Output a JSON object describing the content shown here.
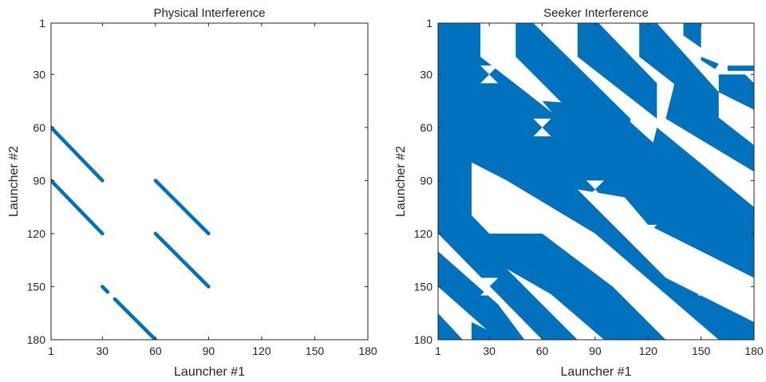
{
  "chart_data": [
    {
      "type": "heatmap",
      "title": "Physical Interference",
      "xlabel": "Launcher #1",
      "ylabel": "Launcher #2",
      "xlim": [
        1,
        180
      ],
      "ylim": [
        1,
        180
      ],
      "y_reversed": true,
      "xticks": [
        "1",
        "30",
        "60",
        "90",
        "120",
        "150",
        "180"
      ],
      "yticks": [
        "1",
        "30",
        "60",
        "90",
        "120",
        "150",
        "180"
      ],
      "color": "#0072BD",
      "bands": [
        {
          "x": [
            1,
            30
          ],
          "y": [
            60,
            90
          ]
        },
        {
          "x": [
            1,
            30
          ],
          "y": [
            90,
            120
          ]
        },
        {
          "x": [
            60,
            90
          ],
          "y": [
            90,
            120
          ]
        },
        {
          "x": [
            60,
            90
          ],
          "y": [
            120,
            150
          ]
        },
        {
          "x": [
            30,
            33
          ],
          "y": [
            150,
            153
          ]
        },
        {
          "x": [
            37,
            60
          ],
          "y": [
            157,
            180
          ]
        }
      ]
    },
    {
      "type": "heatmap",
      "title": "Seeker Interference",
      "xlabel": "Launcher #1",
      "ylabel": "Launcher #2",
      "xlim": [
        1,
        180
      ],
      "ylim": [
        1,
        180
      ],
      "y_reversed": true,
      "xticks": [
        "1",
        "30",
        "60",
        "90",
        "120",
        "150",
        "180"
      ],
      "yticks": [
        "1",
        "30",
        "60",
        "90",
        "120",
        "150",
        "180"
      ],
      "color": "#0072BD",
      "polygons": [
        [
          [
            1,
            1
          ],
          [
            1,
            120
          ],
          [
            60,
            180
          ],
          [
            80,
            180
          ],
          [
            20,
            120
          ],
          [
            20,
            60
          ],
          [
            40,
            70
          ],
          [
            60,
            90
          ],
          [
            80,
            95
          ],
          [
            110,
            100
          ],
          [
            105,
            70
          ],
          [
            70,
            55
          ],
          [
            25,
            20
          ],
          [
            25,
            1
          ]
        ],
        [
          [
            45,
            1
          ],
          [
            55,
            1
          ],
          [
            110,
            55
          ],
          [
            108,
            80
          ],
          [
            80,
            55
          ],
          [
            45,
            20
          ]
        ],
        [
          [
            80,
            1
          ],
          [
            92,
            1
          ],
          [
            125,
            35
          ],
          [
            125,
            55
          ],
          [
            80,
            20
          ]
        ],
        [
          [
            115,
            1
          ],
          [
            125,
            1
          ],
          [
            160,
            40
          ],
          [
            160,
            55
          ],
          [
            115,
            20
          ]
        ],
        [
          [
            140,
            1
          ],
          [
            150,
            1
          ],
          [
            150,
            15
          ],
          [
            140,
            8
          ]
        ],
        [
          [
            1,
            50
          ],
          [
            35,
            50
          ],
          [
            130,
            145
          ],
          [
            180,
            170
          ],
          [
            180,
            180
          ],
          [
            160,
            180
          ],
          [
            90,
            120
          ],
          [
            40,
            90
          ],
          [
            1,
            70
          ]
        ],
        [
          [
            60,
            45
          ],
          [
            100,
            48
          ],
          [
            180,
            120
          ],
          [
            180,
            145
          ],
          [
            120,
            115
          ]
        ],
        [
          [
            125,
            60
          ],
          [
            180,
            105
          ],
          [
            180,
            125
          ],
          [
            120,
            80
          ]
        ],
        [
          [
            135,
            35
          ],
          [
            180,
            70
          ],
          [
            180,
            85
          ],
          [
            130,
            55
          ]
        ],
        [
          [
            160,
            30
          ],
          [
            175,
            30
          ],
          [
            180,
            35
          ],
          [
            180,
            50
          ],
          [
            160,
            40
          ]
        ],
        [
          [
            150,
            20
          ],
          [
            160,
            24
          ],
          [
            158,
            27
          ],
          [
            150,
            22
          ]
        ],
        [
          [
            165,
            25
          ],
          [
            180,
            25
          ],
          [
            180,
            28
          ],
          [
            165,
            28
          ]
        ],
        [
          [
            1,
            90
          ],
          [
            30,
            120
          ],
          [
            60,
            120
          ],
          [
            100,
            150
          ],
          [
            130,
            180
          ],
          [
            105,
            180
          ],
          [
            75,
            160
          ],
          [
            40,
            140
          ],
          [
            1,
            110
          ]
        ],
        [
          [
            1,
            130
          ],
          [
            35,
            160
          ],
          [
            50,
            180
          ],
          [
            35,
            180
          ],
          [
            1,
            150
          ]
        ],
        [
          [
            1,
            165
          ],
          [
            15,
            180
          ],
          [
            1,
            180
          ]
        ],
        [
          [
            60,
            135
          ],
          [
            110,
            170
          ],
          [
            120,
            180
          ],
          [
            95,
            180
          ],
          [
            60,
            150
          ]
        ],
        [
          [
            20,
            170
          ],
          [
            40,
            180
          ],
          [
            20,
            180
          ]
        ]
      ],
      "holes": [
        [
          [
            25,
            25
          ],
          [
            35,
            25
          ],
          [
            30,
            30
          ]
        ],
        [
          [
            25,
            35
          ],
          [
            35,
            35
          ],
          [
            30,
            30
          ]
        ],
        [
          [
            55,
            55
          ],
          [
            65,
            55
          ],
          [
            60,
            60
          ]
        ],
        [
          [
            55,
            65
          ],
          [
            65,
            65
          ],
          [
            60,
            60
          ]
        ],
        [
          [
            85,
            90
          ],
          [
            95,
            90
          ],
          [
            90,
            95
          ]
        ],
        [
          [
            85,
            100
          ],
          [
            95,
            100
          ],
          [
            90,
            95
          ]
        ],
        [
          [
            115,
            115
          ],
          [
            125,
            115
          ],
          [
            120,
            120
          ]
        ],
        [
          [
            115,
            125
          ],
          [
            125,
            125
          ],
          [
            120,
            120
          ]
        ],
        [
          [
            148,
            145
          ],
          [
            158,
            145
          ],
          [
            153,
            150
          ]
        ],
        [
          [
            148,
            155
          ],
          [
            158,
            155
          ],
          [
            153,
            150
          ]
        ],
        [
          [
            25,
            145
          ],
          [
            35,
            145
          ],
          [
            30,
            150
          ]
        ],
        [
          [
            25,
            155
          ],
          [
            35,
            155
          ],
          [
            30,
            150
          ]
        ]
      ]
    }
  ]
}
